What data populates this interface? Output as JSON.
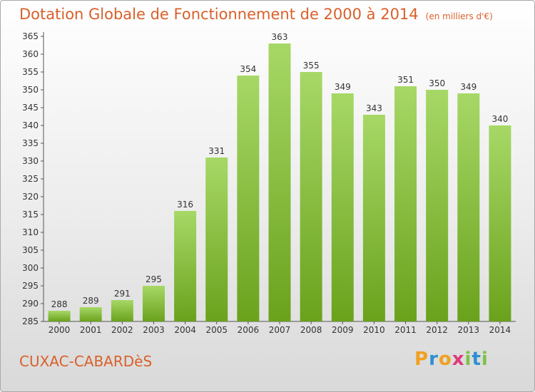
{
  "chart_data": {
    "type": "bar",
    "title": "Dotation Globale de Fonctionnement de 2000 à 2014",
    "subtitle": "(en milliers d'€)",
    "categories": [
      "2000",
      "2001",
      "2002",
      "2003",
      "2004",
      "2005",
      "2006",
      "2007",
      "2008",
      "2009",
      "2010",
      "2011",
      "2012",
      "2013",
      "2014"
    ],
    "values": [
      288,
      289,
      291,
      295,
      316,
      331,
      354,
      363,
      355,
      349,
      343,
      351,
      350,
      349,
      340
    ],
    "ylim": [
      285,
      365
    ],
    "ytick_step": 5,
    "grid": false,
    "legend": "none",
    "bar_color_light": "#a7d867",
    "bar_color_dark": "#6aa21c"
  },
  "commune": "CUXAC-CABARDèS",
  "logo": {
    "letters": [
      "P",
      "r",
      "o",
      "x",
      "i",
      "t",
      "i"
    ],
    "colors": [
      "#f0a11f",
      "#2f8fd1",
      "#f0a11f",
      "#e0387a",
      "#7cc243",
      "#2f8fd1",
      "#7cc243"
    ]
  },
  "colors": {
    "accent": "#d9602a",
    "axis": "#555555"
  }
}
